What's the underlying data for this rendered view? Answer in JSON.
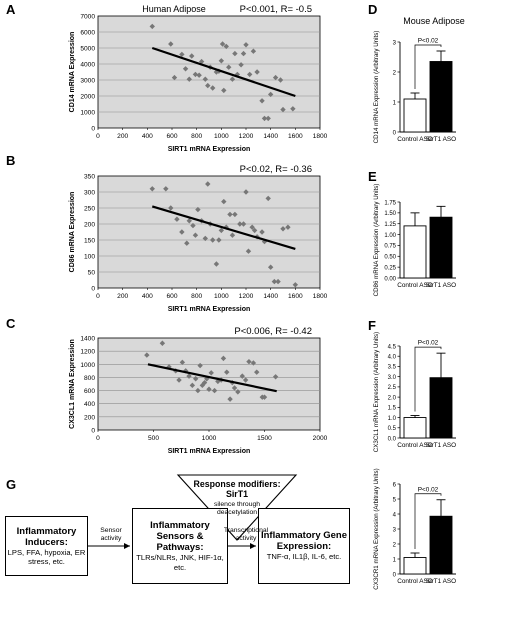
{
  "panel_letters": {
    "A": "A",
    "B": "B",
    "C": "C",
    "D": "D",
    "E": "E",
    "F": "F",
    "G": "G"
  },
  "colors": {
    "plot_bg": "#d9d9d9",
    "grid": "#8f8f8f",
    "point": "#777777",
    "fit": "#000000",
    "bar_control": "#ffffff",
    "bar_sirt1": "#000000"
  },
  "chart_data": [
    {
      "id": "A",
      "type": "scatter",
      "title": "Human Adipose",
      "stat": "P<0.001, R= -0.5",
      "xlabel": "SIRT1 mRNA Expression",
      "ylabel": "CD14 mRNA Expression",
      "xlim": [
        0,
        1800
      ],
      "ylim": [
        0,
        7000
      ],
      "xticks": [
        0,
        200,
        400,
        600,
        800,
        1000,
        1200,
        1400,
        1600,
        1800
      ],
      "yticks": [
        0,
        1000,
        2000,
        3000,
        4000,
        5000,
        6000,
        7000
      ],
      "grid": true,
      "trendline": [
        [
          440,
          5000
        ],
        [
          1600,
          2000
        ]
      ],
      "points": [
        [
          440,
          6350
        ],
        [
          590,
          5250
        ],
        [
          620,
          3150
        ],
        [
          680,
          4600
        ],
        [
          710,
          3700
        ],
        [
          740,
          3050
        ],
        [
          760,
          4500
        ],
        [
          790,
          3350
        ],
        [
          820,
          3300
        ],
        [
          840,
          4150
        ],
        [
          870,
          3050
        ],
        [
          890,
          2650
        ],
        [
          910,
          3800
        ],
        [
          930,
          2500
        ],
        [
          960,
          3500
        ],
        [
          980,
          3550
        ],
        [
          1000,
          4200
        ],
        [
          1010,
          5250
        ],
        [
          1020,
          2350
        ],
        [
          1040,
          5100
        ],
        [
          1060,
          3800
        ],
        [
          1090,
          3050
        ],
        [
          1110,
          4650
        ],
        [
          1130,
          3350
        ],
        [
          1160,
          3950
        ],
        [
          1180,
          4650
        ],
        [
          1200,
          5200
        ],
        [
          1230,
          3350
        ],
        [
          1260,
          4800
        ],
        [
          1290,
          3500
        ],
        [
          1330,
          1700
        ],
        [
          1350,
          600
        ],
        [
          1380,
          600
        ],
        [
          1400,
          2100
        ],
        [
          1440,
          3150
        ],
        [
          1480,
          3000
        ],
        [
          1500,
          1150
        ],
        [
          1580,
          1200
        ]
      ]
    },
    {
      "id": "B",
      "type": "scatter",
      "title": "",
      "stat": "P<0.02, R= -0.36",
      "xlabel": "SIRT1 mRNA Expression",
      "ylabel": "CD86 mRNA Expression",
      "xlim": [
        0,
        1800
      ],
      "ylim": [
        0,
        350
      ],
      "xticks": [
        0,
        200,
        400,
        600,
        800,
        1000,
        1200,
        1400,
        1600,
        1800
      ],
      "yticks": [
        0,
        50,
        100,
        150,
        200,
        250,
        300,
        350
      ],
      "grid": true,
      "trendline": [
        [
          440,
          255
        ],
        [
          1600,
          122
        ]
      ],
      "points": [
        [
          440,
          310
        ],
        [
          550,
          310
        ],
        [
          590,
          250
        ],
        [
          640,
          215
        ],
        [
          680,
          175
        ],
        [
          720,
          140
        ],
        [
          740,
          210
        ],
        [
          770,
          195
        ],
        [
          790,
          165
        ],
        [
          810,
          245
        ],
        [
          840,
          210
        ],
        [
          870,
          155
        ],
        [
          890,
          325
        ],
        [
          910,
          200
        ],
        [
          930,
          150
        ],
        [
          960,
          75
        ],
        [
          980,
          150
        ],
        [
          1000,
          180
        ],
        [
          1020,
          270
        ],
        [
          1040,
          190
        ],
        [
          1070,
          230
        ],
        [
          1090,
          165
        ],
        [
          1110,
          230
        ],
        [
          1150,
          200
        ],
        [
          1180,
          200
        ],
        [
          1200,
          300
        ],
        [
          1220,
          115
        ],
        [
          1250,
          190
        ],
        [
          1270,
          180
        ],
        [
          1290,
          160
        ],
        [
          1330,
          175
        ],
        [
          1350,
          145
        ],
        [
          1380,
          280
        ],
        [
          1400,
          65
        ],
        [
          1430,
          20
        ],
        [
          1460,
          20
        ],
        [
          1500,
          185
        ],
        [
          1540,
          190
        ],
        [
          1600,
          10
        ]
      ]
    },
    {
      "id": "C",
      "type": "scatter",
      "title": "",
      "stat": "P<0.006, R= -0.42",
      "xlabel": "SIRT1 mRNA Expression",
      "ylabel": "CX3CL1 mRNA Expression",
      "xlim": [
        0,
        2000
      ],
      "ylim": [
        0,
        1400
      ],
      "xticks": [
        0,
        500,
        1000,
        1500,
        2000
      ],
      "yticks": [
        0,
        200,
        400,
        600,
        800,
        1000,
        1200,
        1400
      ],
      "grid": true,
      "trendline": [
        [
          450,
          1000
        ],
        [
          1610,
          590
        ]
      ],
      "points": [
        [
          440,
          1140
        ],
        [
          580,
          1320
        ],
        [
          640,
          960
        ],
        [
          700,
          900
        ],
        [
          730,
          760
        ],
        [
          760,
          1030
        ],
        [
          790,
          900
        ],
        [
          820,
          820
        ],
        [
          850,
          680
        ],
        [
          880,
          780
        ],
        [
          900,
          600
        ],
        [
          920,
          980
        ],
        [
          940,
          680
        ],
        [
          960,
          720
        ],
        [
          980,
          780
        ],
        [
          1000,
          620
        ],
        [
          1020,
          870
        ],
        [
          1050,
          600
        ],
        [
          1080,
          740
        ],
        [
          1110,
          760
        ],
        [
          1130,
          1090
        ],
        [
          1160,
          880
        ],
        [
          1190,
          470
        ],
        [
          1210,
          720
        ],
        [
          1230,
          640
        ],
        [
          1260,
          580
        ],
        [
          1300,
          820
        ],
        [
          1330,
          760
        ],
        [
          1360,
          1040
        ],
        [
          1400,
          1020
        ],
        [
          1430,
          880
        ],
        [
          1480,
          500
        ],
        [
          1500,
          500
        ],
        [
          1600,
          810
        ]
      ]
    },
    {
      "id": "D",
      "type": "bar",
      "title": "Mouse Adipose",
      "ylabel": "CD14 mRNA Expression (Arbitrary Units)",
      "categories": [
        "Control ASO",
        "SirT1 ASO"
      ],
      "values": [
        1.1,
        2.35
      ],
      "errors": [
        0.2,
        0.35
      ],
      "ylim": [
        0,
        3
      ],
      "yticks": [
        "0",
        "1",
        "2",
        "3"
      ],
      "significance": "P<0.02"
    },
    {
      "id": "E",
      "type": "bar",
      "title": "",
      "ylabel": "CD86 mRNA Expression (Arbitrary Units)",
      "categories": [
        "Control ASO",
        "SirT1 ASO"
      ],
      "values": [
        1.2,
        1.4
      ],
      "errors": [
        0.3,
        0.25
      ],
      "ylim": [
        0,
        1.75
      ],
      "yticks": [
        "0.00",
        "0.25",
        "0.50",
        "0.75",
        "1.00",
        "1.25",
        "1.50",
        "1.75"
      ],
      "significance": ""
    },
    {
      "id": "F",
      "type": "bar",
      "title": "",
      "ylabel": "CX3CL1 mRNA Expression (Arbitrary Units)",
      "categories": [
        "Control ASO",
        "SirT1 ASO"
      ],
      "values": [
        1.0,
        2.95
      ],
      "errors": [
        0.1,
        1.2
      ],
      "ylim": [
        0,
        4.5
      ],
      "yticks": [
        "0.0",
        "0.5",
        "1.0",
        "1.5",
        "2.0",
        "2.5",
        "3.0",
        "3.5",
        "4.0",
        "4.5"
      ],
      "significance": "P<0.02"
    },
    {
      "id": "H",
      "type": "bar",
      "title": "",
      "ylabel": "CX3CR1 mRNA Expression (Arbitrary Units)",
      "categories": [
        "Control ASO",
        "SirT1 ASO"
      ],
      "values": [
        1.1,
        3.85
      ],
      "errors": [
        0.3,
        1.1
      ],
      "ylim": [
        0,
        6
      ],
      "yticks": [
        "0",
        "1",
        "2",
        "3",
        "4",
        "5",
        "6"
      ],
      "significance": "P<0.02"
    }
  ],
  "diagram": {
    "inducers": {
      "title": "Inflammatory Inducers:",
      "body": "LPS, FFA, hypoxia, ER stress, etc."
    },
    "sensors": {
      "title": "Inflammatory Sensors & Pathways:",
      "body": "TLRs/NLRs, JNK, HIF-1α, etc."
    },
    "genes": {
      "title": "Inflammatory Gene Expression:",
      "body": "TNF-α, IL1β, IL-6, etc."
    },
    "modifier_title": "Response modifiers: SirT1",
    "modifier_body": "silence through deacetylation",
    "arrow1": "Sensor activity",
    "arrow2": "Transcriptional activity"
  }
}
